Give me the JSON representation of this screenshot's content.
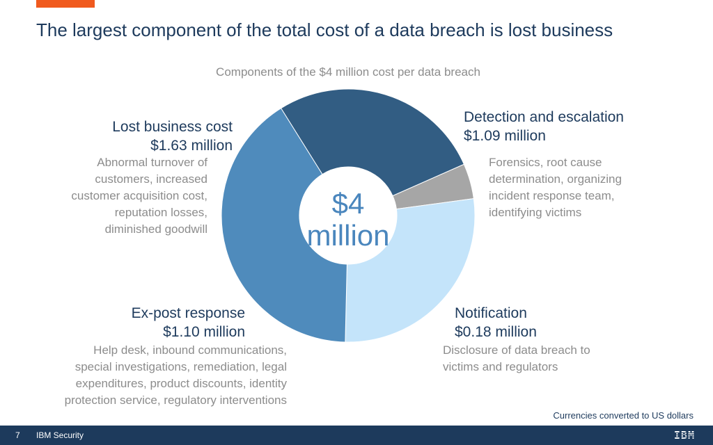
{
  "slide": {
    "title": "The largest component of the total cost of a data breach is lost business",
    "subtitle": "Components of the $4 million cost per data breach",
    "center_line1": "$4",
    "center_line2": "million",
    "footnote": "Currencies converted to US dollars"
  },
  "footer": {
    "page_number": "7",
    "brand": "IBM Security",
    "logo_text": "IBM"
  },
  "colors": {
    "accent": "#f05a1e",
    "navy": "#1d3a5c"
  },
  "chart_data": {
    "type": "pie",
    "title": "Components of the $4 million cost per data breach",
    "unit": "million USD",
    "total_label": "$4 million",
    "slices": [
      {
        "key": "lost_business",
        "name": "Lost business cost",
        "value": 1.63,
        "value_label": "$1.63 million",
        "description": [
          "Abnormal turnover of",
          "customers, increased",
          "customer acquisition cost,",
          "reputation losses,",
          "diminished goodwill"
        ],
        "color": "#4f8bbc"
      },
      {
        "key": "detection",
        "name": "Detection and escalation",
        "value": 1.09,
        "value_label": "$1.09 million",
        "description": [
          "Forensics, root cause",
          "determination, organizing",
          "incident response team,",
          "identifying victims"
        ],
        "color": "#325d83"
      },
      {
        "key": "notification",
        "name": "Notification",
        "value": 0.18,
        "value_label": "$0.18 million",
        "description": [
          "Disclosure of data breach to",
          "victims and regulators"
        ],
        "color": "#a6a6a6"
      },
      {
        "key": "ex_post",
        "name": "Ex-post response",
        "value": 1.1,
        "value_label": "$1.10 million",
        "description": [
          "Help desk, inbound communications,",
          "special investigations, remediation, legal",
          "expenditures, product discounts, identity",
          "protection service, regulatory interventions"
        ],
        "color": "#c4e4fa"
      }
    ]
  }
}
